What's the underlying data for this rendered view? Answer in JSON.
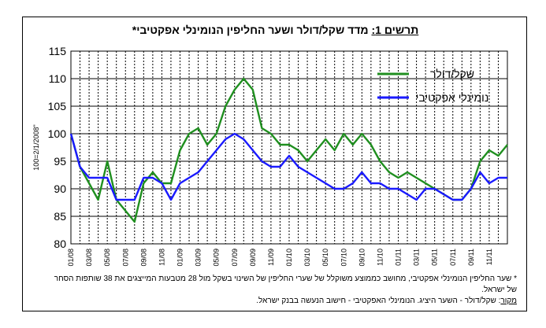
{
  "chart_data": {
    "type": "line",
    "title_label": "תרשים 1:",
    "title_rest": "מדד שקל/דולר ושער החליפין הנומינלי אפקטיבי*",
    "ylabel": "100=2/1/2008\"",
    "ylim": [
      80,
      115
    ],
    "yticks": [
      80,
      85,
      90,
      95,
      100,
      105,
      110,
      115
    ],
    "grid": true,
    "legend_position": "top-right",
    "x_labels": [
      "01/08",
      "03/08",
      "05/08",
      "07/08",
      "09/08",
      "11/08",
      "01/09",
      "03/09",
      "05/09",
      "07/09",
      "09/09",
      "11/09",
      "01/10",
      "03/10",
      "05/10",
      "07/10",
      "09/10",
      "11/10",
      "01/11",
      "03/11",
      "05/11",
      "07/11",
      "09/11",
      "11/11"
    ],
    "x_range": [
      0,
      48
    ],
    "series": [
      {
        "name": "שקל/דולר",
        "color": "#1f8f1f",
        "x": [
          0,
          1,
          2,
          3,
          4,
          5,
          6,
          7,
          8,
          9,
          10,
          11,
          12,
          13,
          14,
          15,
          16,
          17,
          18,
          19,
          20,
          21,
          22,
          23,
          24,
          25,
          26,
          27,
          28,
          29,
          30,
          31,
          32,
          33,
          34,
          35,
          36,
          37,
          38,
          39,
          40,
          41,
          42,
          43,
          44,
          45,
          46,
          47,
          48
        ],
        "values": [
          100,
          94,
          91,
          88,
          95,
          88,
          86,
          84,
          91,
          93,
          91,
          91,
          97,
          100,
          101,
          98,
          100,
          105,
          108,
          110,
          108,
          101,
          100,
          98,
          98,
          97,
          95,
          97,
          99,
          97,
          100,
          98,
          100,
          98,
          95,
          93,
          92,
          93,
          92,
          91,
          90,
          89,
          88,
          88,
          90,
          95,
          97,
          96,
          98
        ]
      },
      {
        "name": "נומינלי אפקטיבי",
        "color": "#1a1aff",
        "x": [
          0,
          1,
          2,
          3,
          4,
          5,
          6,
          7,
          8,
          9,
          10,
          11,
          12,
          13,
          14,
          15,
          16,
          17,
          18,
          19,
          20,
          21,
          22,
          23,
          24,
          25,
          26,
          27,
          28,
          29,
          30,
          31,
          32,
          33,
          34,
          35,
          36,
          37,
          38,
          39,
          40,
          41,
          42,
          43,
          44,
          45,
          46,
          47,
          48
        ],
        "values": [
          100,
          94,
          92,
          92,
          92,
          88,
          88,
          88,
          92,
          92,
          91,
          88,
          91,
          92,
          93,
          95,
          97,
          99,
          100,
          99,
          97,
          95,
          94,
          94,
          96,
          94,
          93,
          92,
          91,
          90,
          90,
          91,
          93,
          91,
          91,
          90,
          90,
          89,
          88,
          90,
          90,
          89,
          88,
          88,
          90,
          93,
          91,
          92,
          92
        ]
      }
    ]
  },
  "footnotes": {
    "note": "* שער החליפין הנומינלי אפקטיבי, מחושב כממוצע משוקלל של שערי החליפין של השינוי בשקל מול 28 מטבעות המייצגים את 38 שותפות הסחר של ישראל.",
    "source_label": "מקור",
    "source_text": ": שקל/דולר - השער היציג. הנומינלי האפקטיבי - חישוב הנעשה בבנק ישראל."
  }
}
